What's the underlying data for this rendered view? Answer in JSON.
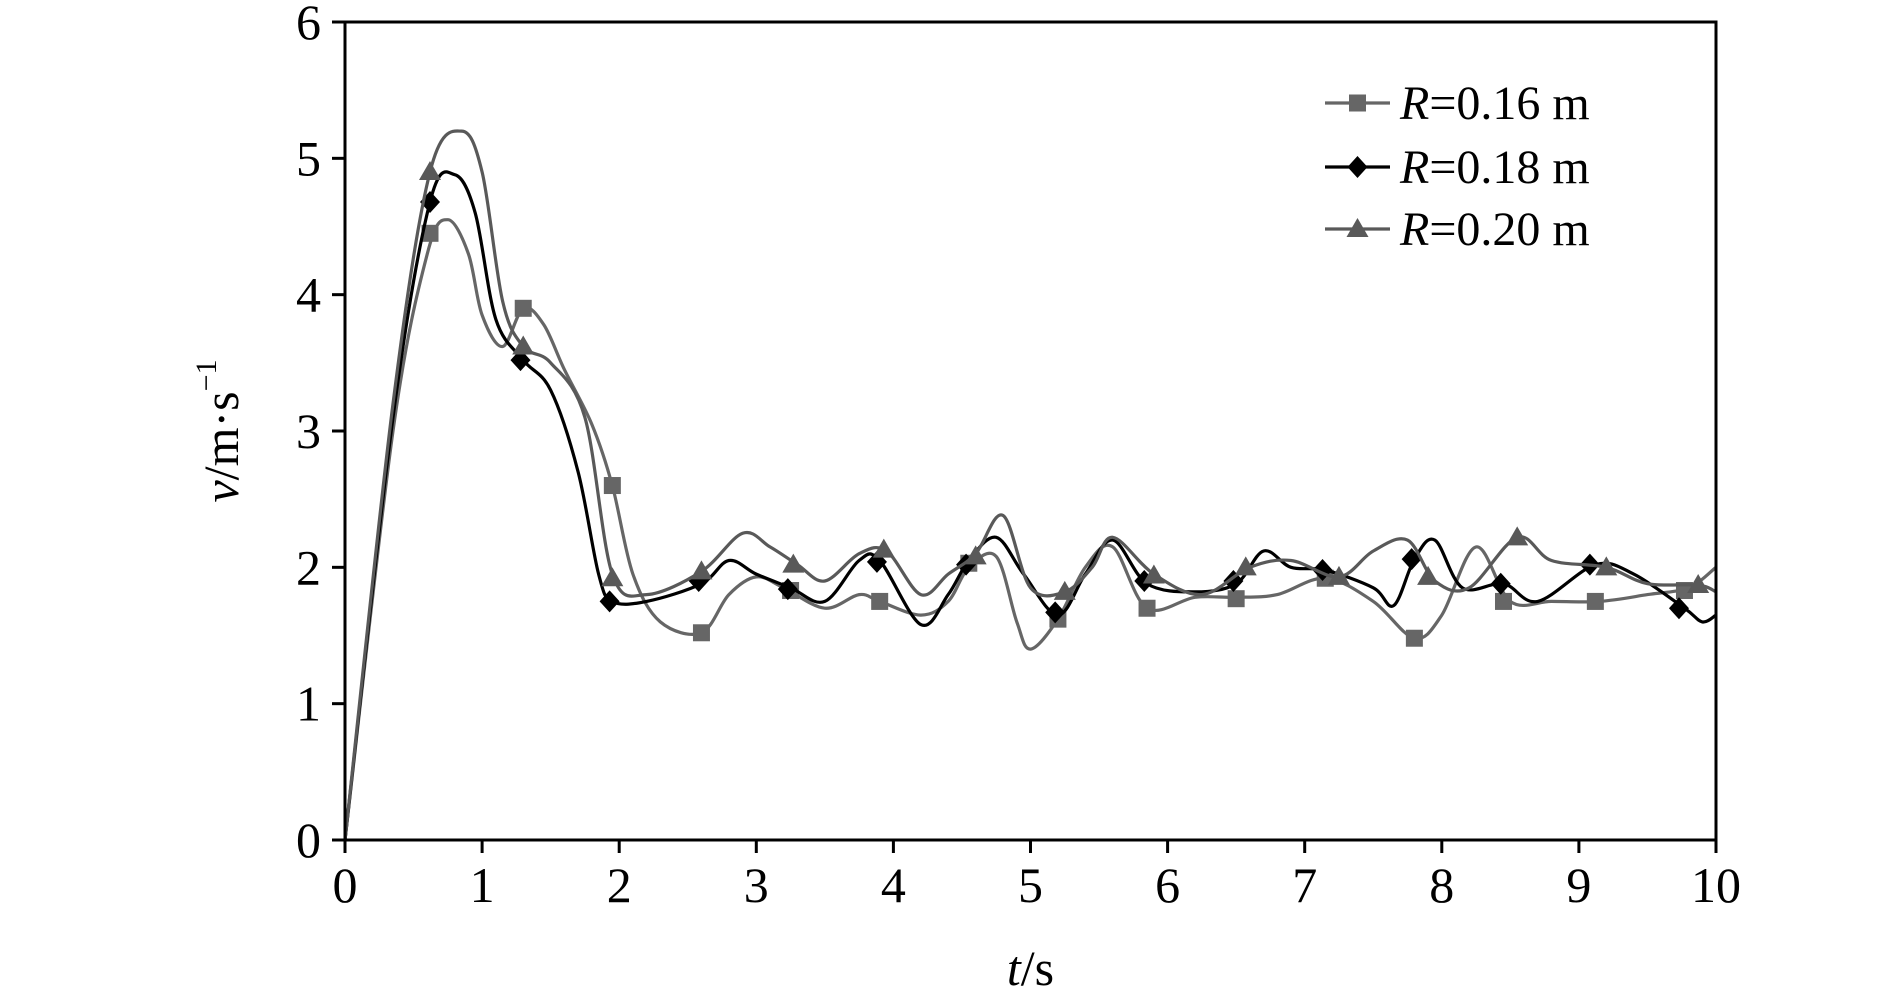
{
  "chart_data": {
    "type": "line",
    "title": "",
    "xlabel": {
      "var": "t",
      "unit": "/s"
    },
    "ylabel": {
      "var": "v",
      "unit": "/m·s",
      "exp": "−1"
    },
    "xlim": [
      0,
      10
    ],
    "ylim": [
      0,
      6
    ],
    "x_ticks": [
      0,
      1,
      2,
      3,
      4,
      5,
      6,
      7,
      8,
      9,
      10
    ],
    "y_ticks": [
      0,
      1,
      2,
      3,
      4,
      5,
      6
    ],
    "x_tick_labels": [
      "0",
      "1",
      "2",
      "3",
      "4",
      "5",
      "6",
      "7",
      "8",
      "9",
      "10"
    ],
    "y_tick_labels": [
      "0",
      "1",
      "2",
      "3",
      "4",
      "5",
      "6"
    ],
    "grid": false,
    "legend_position": "top-right",
    "series": [
      {
        "name": "R=0.16 m",
        "legend_var": "R",
        "legend_rest": "=0.16 m",
        "marker": "square",
        "color": "#666666",
        "curve": [
          [
            0,
            0
          ],
          [
            0.35,
            3.0
          ],
          [
            0.6,
            4.3
          ],
          [
            0.75,
            4.55
          ],
          [
            0.9,
            4.3
          ],
          [
            1.0,
            3.85
          ],
          [
            1.15,
            3.62
          ],
          [
            1.3,
            3.9
          ],
          [
            1.45,
            3.78
          ],
          [
            1.6,
            3.45
          ],
          [
            1.8,
            3.05
          ],
          [
            1.95,
            2.6
          ],
          [
            2.1,
            1.95
          ],
          [
            2.3,
            1.6
          ],
          [
            2.6,
            1.52
          ],
          [
            2.8,
            1.8
          ],
          [
            3.0,
            1.93
          ],
          [
            3.2,
            1.85
          ],
          [
            3.5,
            1.7
          ],
          [
            3.75,
            1.8
          ],
          [
            3.9,
            1.75
          ],
          [
            4.2,
            1.65
          ],
          [
            4.4,
            1.75
          ],
          [
            4.55,
            2.0
          ],
          [
            4.75,
            2.08
          ],
          [
            4.9,
            1.6
          ],
          [
            5.0,
            1.4
          ],
          [
            5.2,
            1.62
          ],
          [
            5.4,
            2.0
          ],
          [
            5.6,
            2.15
          ],
          [
            5.85,
            1.7
          ],
          [
            6.2,
            1.78
          ],
          [
            6.5,
            1.78
          ],
          [
            6.8,
            1.8
          ],
          [
            7.15,
            1.92
          ],
          [
            7.5,
            1.75
          ],
          [
            7.8,
            1.48
          ],
          [
            8.0,
            1.65
          ],
          [
            8.25,
            2.15
          ],
          [
            8.5,
            1.75
          ],
          [
            8.8,
            1.75
          ],
          [
            9.15,
            1.75
          ],
          [
            9.5,
            1.8
          ],
          [
            9.8,
            1.85
          ],
          [
            10,
            2.0
          ]
        ],
        "markers": [
          [
            0.62,
            4.45
          ],
          [
            1.3,
            3.9
          ],
          [
            1.95,
            2.6
          ],
          [
            2.6,
            1.52
          ],
          [
            3.25,
            1.83
          ],
          [
            3.9,
            1.75
          ],
          [
            4.55,
            2.03
          ],
          [
            5.2,
            1.62
          ],
          [
            5.85,
            1.7
          ],
          [
            6.5,
            1.77
          ],
          [
            7.15,
            1.92
          ],
          [
            7.8,
            1.48
          ],
          [
            8.45,
            1.75
          ],
          [
            9.12,
            1.75
          ],
          [
            9.77,
            1.83
          ]
        ]
      },
      {
        "name": "R=0.18 m",
        "legend_var": "R",
        "legend_rest": "=0.18 m",
        "marker": "diamond",
        "color": "#000000",
        "curve": [
          [
            0,
            0
          ],
          [
            0.35,
            3.1
          ],
          [
            0.62,
            4.68
          ],
          [
            0.8,
            4.88
          ],
          [
            0.95,
            4.6
          ],
          [
            1.1,
            3.82
          ],
          [
            1.3,
            3.52
          ],
          [
            1.5,
            3.3
          ],
          [
            1.7,
            2.7
          ],
          [
            1.85,
            1.95
          ],
          [
            1.95,
            1.75
          ],
          [
            2.2,
            1.75
          ],
          [
            2.6,
            1.88
          ],
          [
            2.8,
            2.05
          ],
          [
            3.0,
            1.95
          ],
          [
            3.25,
            1.85
          ],
          [
            3.5,
            1.75
          ],
          [
            3.75,
            2.05
          ],
          [
            3.9,
            2.05
          ],
          [
            4.2,
            1.58
          ],
          [
            4.4,
            1.8
          ],
          [
            4.55,
            2.05
          ],
          [
            4.75,
            2.22
          ],
          [
            4.95,
            1.95
          ],
          [
            5.2,
            1.65
          ],
          [
            5.4,
            1.95
          ],
          [
            5.6,
            2.2
          ],
          [
            5.85,
            1.88
          ],
          [
            6.2,
            1.82
          ],
          [
            6.5,
            1.88
          ],
          [
            6.7,
            2.12
          ],
          [
            6.9,
            2.0
          ],
          [
            7.15,
            1.98
          ],
          [
            7.5,
            1.85
          ],
          [
            7.65,
            1.72
          ],
          [
            7.8,
            2.06
          ],
          [
            7.95,
            2.2
          ],
          [
            8.15,
            1.85
          ],
          [
            8.45,
            1.88
          ],
          [
            8.7,
            1.75
          ],
          [
            9.12,
            2.02
          ],
          [
            9.4,
            1.95
          ],
          [
            9.77,
            1.7
          ],
          [
            9.9,
            1.6
          ],
          [
            10,
            1.65
          ]
        ],
        "markers": [
          [
            0.62,
            4.68
          ],
          [
            1.28,
            3.52
          ],
          [
            1.93,
            1.75
          ],
          [
            2.58,
            1.9
          ],
          [
            3.23,
            1.84
          ],
          [
            3.88,
            2.04
          ],
          [
            4.53,
            2.02
          ],
          [
            5.18,
            1.67
          ],
          [
            5.83,
            1.9
          ],
          [
            6.48,
            1.9
          ],
          [
            7.13,
            1.98
          ],
          [
            7.78,
            2.06
          ],
          [
            8.43,
            1.88
          ],
          [
            9.08,
            2.02
          ],
          [
            9.73,
            1.7
          ]
        ]
      },
      {
        "name": "R=0.20 m",
        "legend_var": "R",
        "legend_rest": "=0.20 m",
        "marker": "triangle",
        "color": "#595959",
        "curve": [
          [
            0,
            0
          ],
          [
            0.35,
            3.2
          ],
          [
            0.62,
            4.9
          ],
          [
            0.85,
            5.2
          ],
          [
            1.0,
            4.9
          ],
          [
            1.15,
            3.95
          ],
          [
            1.3,
            3.62
          ],
          [
            1.5,
            3.5
          ],
          [
            1.75,
            3.1
          ],
          [
            1.95,
            1.95
          ],
          [
            2.2,
            1.8
          ],
          [
            2.6,
            1.97
          ],
          [
            2.9,
            2.25
          ],
          [
            3.1,
            2.15
          ],
          [
            3.3,
            2.02
          ],
          [
            3.5,
            1.9
          ],
          [
            3.75,
            2.1
          ],
          [
            3.95,
            2.12
          ],
          [
            4.2,
            1.8
          ],
          [
            4.4,
            1.95
          ],
          [
            4.6,
            2.1
          ],
          [
            4.8,
            2.38
          ],
          [
            5.0,
            1.85
          ],
          [
            5.25,
            1.82
          ],
          [
            5.45,
            2.0
          ],
          [
            5.6,
            2.22
          ],
          [
            5.9,
            1.95
          ],
          [
            6.25,
            1.8
          ],
          [
            6.6,
            2.0
          ],
          [
            6.9,
            2.05
          ],
          [
            7.25,
            1.93
          ],
          [
            7.5,
            2.12
          ],
          [
            7.75,
            2.2
          ],
          [
            7.95,
            1.9
          ],
          [
            8.2,
            1.85
          ],
          [
            8.55,
            2.22
          ],
          [
            8.8,
            2.05
          ],
          [
            9.2,
            2.0
          ],
          [
            9.5,
            1.88
          ],
          [
            9.87,
            1.87
          ],
          [
            10,
            1.82
          ]
        ],
        "markers": [
          [
            0.62,
            4.9
          ],
          [
            1.3,
            3.62
          ],
          [
            1.95,
            1.92
          ],
          [
            2.6,
            1.97
          ],
          [
            3.27,
            2.02
          ],
          [
            3.93,
            2.13
          ],
          [
            4.6,
            2.08
          ],
          [
            5.25,
            1.82
          ],
          [
            5.9,
            1.94
          ],
          [
            6.57,
            2.0
          ],
          [
            7.25,
            1.93
          ],
          [
            7.9,
            1.93
          ],
          [
            8.55,
            2.22
          ],
          [
            9.2,
            2.0
          ],
          [
            9.87,
            1.87
          ]
        ]
      }
    ]
  }
}
